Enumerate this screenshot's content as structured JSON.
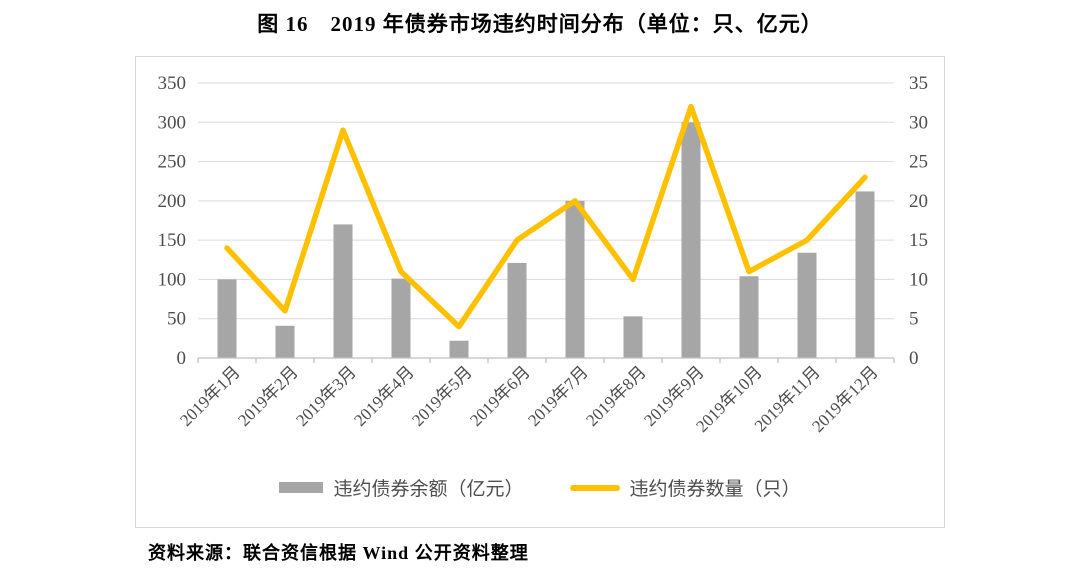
{
  "title": "图 16　2019 年债券市场违约时间分布（单位：只、亿元）",
  "source_note": "资料来源：联合资信根据 Wind 公开资料整理",
  "colors": {
    "bar": "#A6A6A6",
    "line": "#FFC000",
    "grid": "#D9D9D9",
    "axis": "#BFBFBF",
    "tick_text": "#4D4D4D",
    "frame_border": "#D6D6D6"
  },
  "chart_data": {
    "type": "bar+line combo",
    "categories": [
      "2019年1月",
      "2019年2月",
      "2019年3月",
      "2019年4月",
      "2019年5月",
      "2019年6月",
      "2019年7月",
      "2019年8月",
      "2019年9月",
      "2019年10月",
      "2019年11月",
      "2019年12月"
    ],
    "series": [
      {
        "name": "违约债券余额（亿元）",
        "type": "bar",
        "axis": "left",
        "values": [
          100,
          41,
          170,
          101,
          22,
          121,
          200,
          53,
          300,
          104,
          134,
          212
        ]
      },
      {
        "name": "违约债券数量（只）",
        "type": "line",
        "axis": "right",
        "values": [
          14,
          6,
          29,
          11,
          4,
          15,
          20,
          10,
          32,
          11,
          15,
          23
        ]
      }
    ],
    "left_axis": {
      "min": 0,
      "max": 350,
      "step": 50,
      "ticks": [
        350,
        300,
        250,
        200,
        150,
        100,
        50,
        0
      ]
    },
    "right_axis": {
      "min": 0,
      "max": 35,
      "step": 5,
      "ticks": [
        35,
        30,
        25,
        20,
        15,
        10,
        5,
        0
      ]
    },
    "grid": "horizontal",
    "legend_position": "bottom"
  }
}
